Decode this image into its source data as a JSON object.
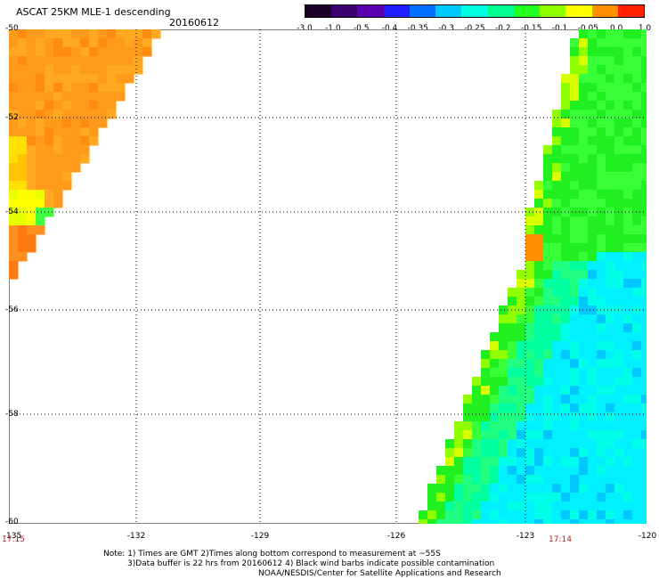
{
  "header": {
    "title": "ASCAT 25KM MLE-1 descending",
    "date": "20160612"
  },
  "colorbar": {
    "tick_labels": [
      "-3.0",
      "-1.0",
      "-0.5",
      "-0.4",
      "-0.35",
      "-0.3",
      "-0.25",
      "-0.2",
      "-0.15",
      "-0.1",
      "-0.05",
      "0.0",
      "1.0"
    ],
    "colors": [
      "#1a0026",
      "#3d0070",
      "#5a00b0",
      "#2020ff",
      "#0070ff",
      "#00c8ff",
      "#00ffe0",
      "#00ff90",
      "#20ff20",
      "#90ff00",
      "#ffff00",
      "#ff9000",
      "#ff2000"
    ]
  },
  "map": {
    "lat_labels": [
      "-50",
      "-52",
      "-54",
      "-56",
      "-58",
      "-60"
    ],
    "lon_labels": [
      "-135",
      "-132",
      "-129",
      "-126",
      "-123",
      "-120"
    ],
    "time_labels": {
      "left": "17:15",
      "right": "17:14"
    }
  },
  "notes": {
    "line1": "Note: 1) Times are GMT 2)Times along bottom correspond to measurement at ~55S",
    "line2": "3)Data buffer is 22 hrs from 20160612 4) Black wind barbs indicate possible contamination",
    "line3": "NOAA/NESDIS/Center for Satellite Applications and Research"
  }
}
